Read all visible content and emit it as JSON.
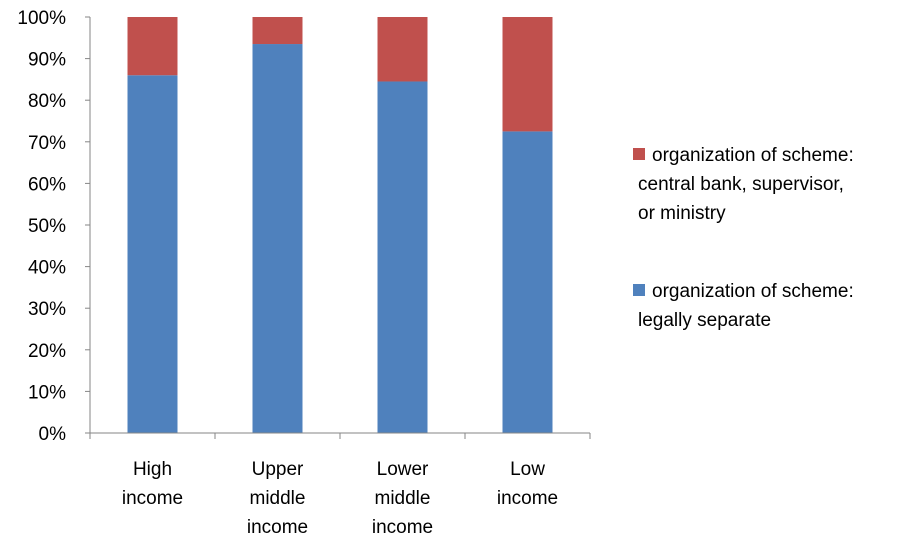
{
  "chart_data": {
    "type": "bar",
    "stacked": true,
    "percent": true,
    "categories": [
      [
        "High",
        "income"
      ],
      [
        "Upper",
        "middle",
        "income"
      ],
      [
        "Lower",
        "middle",
        "income"
      ],
      [
        "Low",
        "income"
      ]
    ],
    "series": [
      {
        "name": "organization of scheme: legally separate",
        "name_lines": [
          "organization of scheme:",
          "legally separate"
        ],
        "color": "#4F81BD",
        "values": [
          86,
          93.5,
          84.5,
          72.5
        ]
      },
      {
        "name": "organization of scheme: central bank, supervisor, or ministry",
        "name_lines": [
          "organization of scheme:",
          "central bank, supervisor,",
          "or ministry"
        ],
        "color": "#C0504D",
        "values": [
          14,
          6.5,
          15.5,
          27.5
        ]
      }
    ],
    "yticks": [
      "0%",
      "10%",
      "20%",
      "30%",
      "40%",
      "50%",
      "60%",
      "70%",
      "80%",
      "90%",
      "100%"
    ],
    "ylim": [
      0,
      100
    ],
    "legend_position": "right",
    "grid": false
  }
}
